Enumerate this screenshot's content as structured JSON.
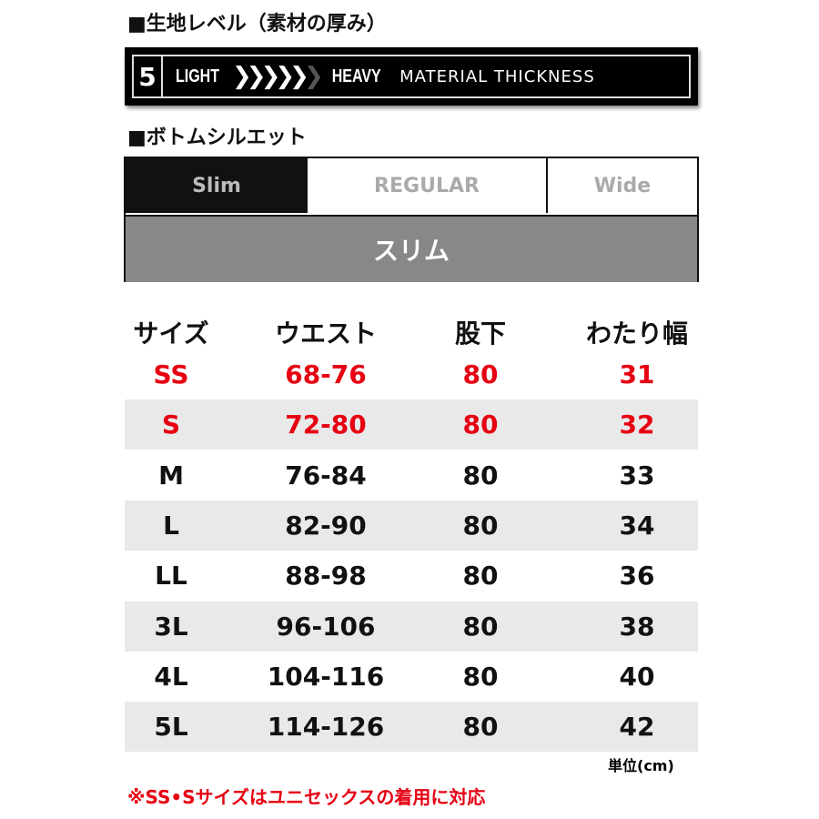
{
  "material": {
    "heading": "■生地レベル（素材の厚み）",
    "level": "5",
    "light": "LIGHT",
    "heavy": "HEAVY",
    "title": "MATERIAL THICKNESS",
    "chevrons_filled": 5,
    "chevrons_total": 6
  },
  "silhouette": {
    "heading": "■ボトムシルエット",
    "options": [
      "Slim",
      "REGULAR",
      "Wide"
    ],
    "selected_label": "スリム"
  },
  "table": {
    "headers": [
      "サイズ",
      "ウエスト",
      "股下",
      "わたり幅"
    ],
    "rows": [
      [
        "SS",
        "68-76",
        "80",
        "31"
      ],
      [
        "S",
        "72-80",
        "80",
        "32"
      ],
      [
        "M",
        "76-84",
        "80",
        "33"
      ],
      [
        "L",
        "82-90",
        "80",
        "34"
      ],
      [
        "LL",
        "88-98",
        "80",
        "36"
      ],
      [
        "3L",
        "96-106",
        "80",
        "38"
      ],
      [
        "4L",
        "104-116",
        "80",
        "40"
      ],
      [
        "5L",
        "114-126",
        "80",
        "42"
      ]
    ]
  },
  "unit": "単位(cm)",
  "note": "※SS•Sサイズはユニセックスの着用に対応",
  "colors": {
    "accent": "#e60012",
    "selected_bg": "#888888"
  }
}
